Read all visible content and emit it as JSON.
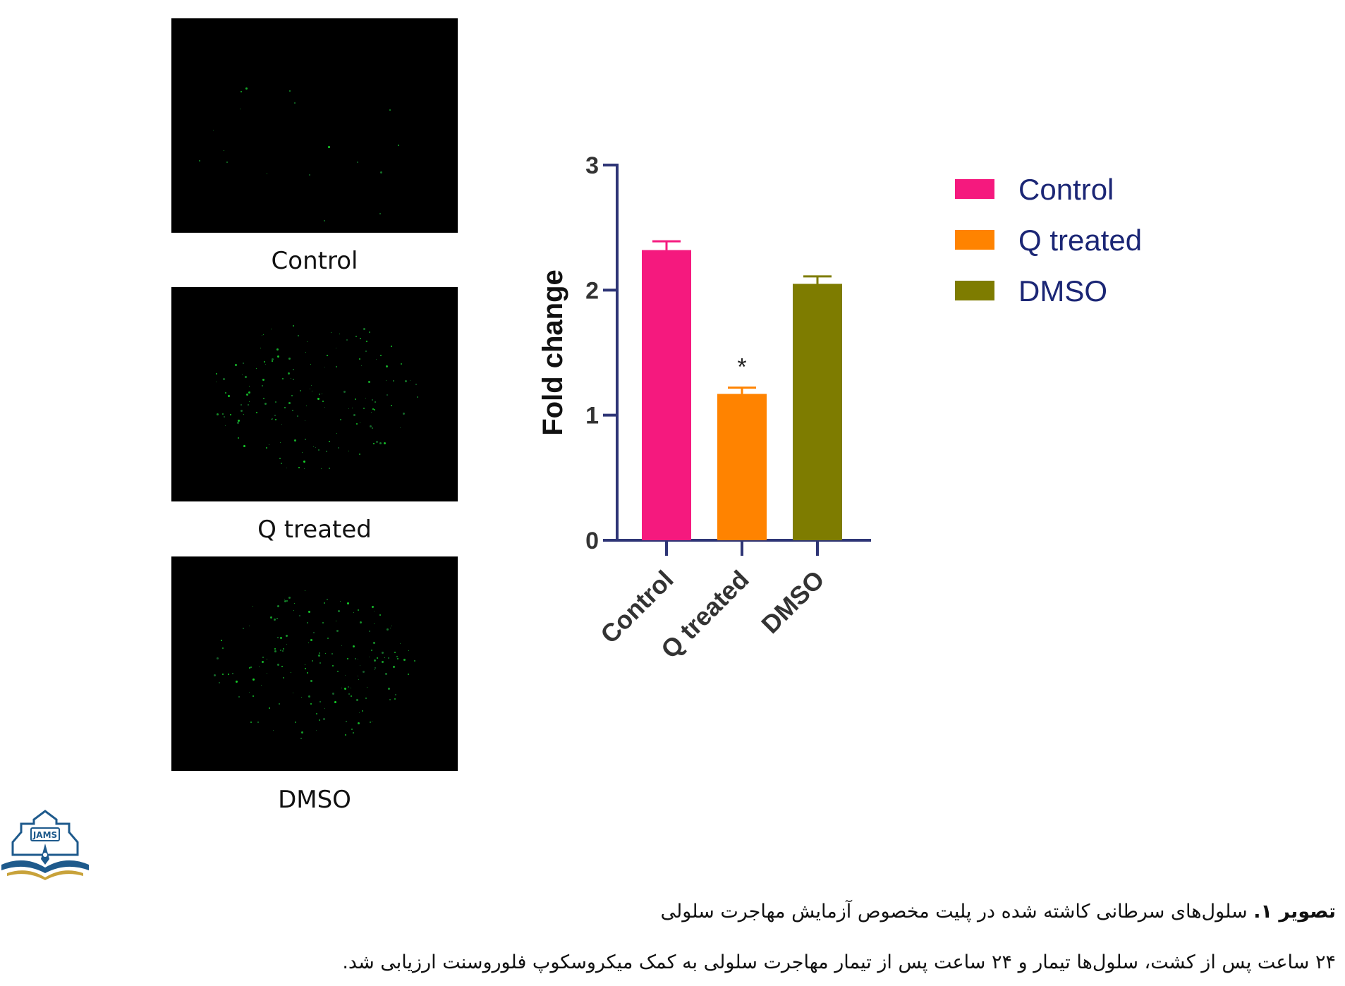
{
  "micrographs": [
    {
      "label": "Control"
    },
    {
      "label": "Q treated"
    },
    {
      "label": "DMSO"
    }
  ],
  "chart_data": {
    "type": "bar",
    "title": "",
    "xlabel": "",
    "ylabel": "Fold change",
    "categories": [
      "Control",
      "Q treated",
      "DMSO"
    ],
    "values": [
      2.32,
      1.17,
      2.05
    ],
    "errors": [
      0.07,
      0.05,
      0.06
    ],
    "colors": [
      "#f5197e",
      "#ff8300",
      "#7e7c00"
    ],
    "ylim": [
      0,
      3
    ],
    "yticks": [
      "0",
      "1",
      "2",
      "3"
    ],
    "annotations": [
      {
        "category": "Q treated",
        "text": "*"
      }
    ],
    "axis_color": "#2e3576",
    "legend": {
      "position": "right",
      "entries": [
        "Control",
        "Q treated",
        "DMSO"
      ],
      "text_color": "#1b2675"
    },
    "grid": false
  },
  "caption": {
    "figure_label": "تصویر ۱.",
    "title": "سلول‌های سرطانی کاشته شده در پلیت مخصوص آزمایش مهاجرت سلولی",
    "note": "۲۴ ساعت پس از کشت، سلول‌ها تیمار و ۲۴ ساعت پس از تیمار مهاجرت سلولی به کمک میکروسکوپ فلوروسنت ارزیابی شد."
  },
  "logo": {
    "text": "JAMS",
    "icon": "journal-logo-icon",
    "colors": [
      "#1e5a8c",
      "#c8a23a"
    ]
  }
}
